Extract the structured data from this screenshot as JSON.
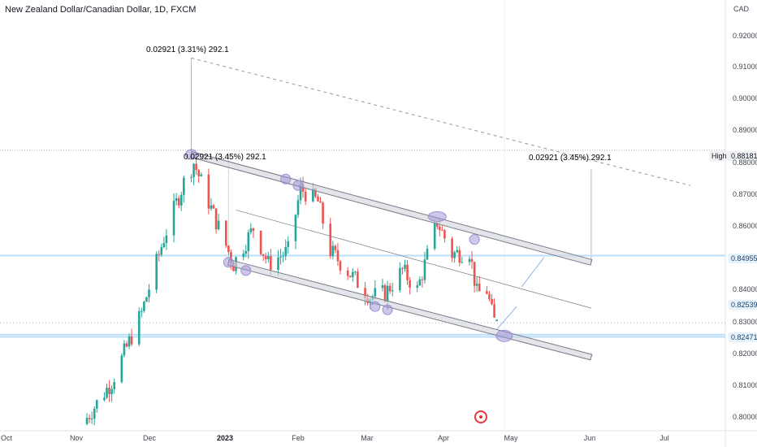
{
  "header": {
    "symbol_title": "New Zealand Dollar/Canadian Dollar, 1D, FXCM"
  },
  "axis": {
    "currency": "CAD",
    "high_label": "High"
  },
  "annotations": {
    "measure_top": "0.02921 (3.31%) 292.1",
    "measure_mid": "0.02921 (3.45%) 292.1",
    "measure_right": "0.02921 (3.45%) 292.1"
  },
  "colors": {
    "up": "#26a69a",
    "down": "#ef5350",
    "channel_fill": "#d1d4dc",
    "channel_stroke": "#787b86",
    "highlight": "#9c8fd6",
    "level_line": "#bbdefb",
    "annotation": "#f06a4a",
    "arrow": "#90b4e0"
  },
  "chart_data": {
    "type": "candlestick",
    "title": "New Zealand Dollar/Canadian Dollar, 1D, FXCM",
    "ylabel": "CAD",
    "ylim": [
      0.7955,
      0.9265
    ],
    "y_ticks": [
      "0.92000",
      "0.91000",
      "0.90000",
      "0.89000",
      "0.88000",
      "0.87000",
      "0.86000",
      "0.85000",
      "0.84000",
      "0.83000",
      "0.82000",
      "0.81000",
      "0.80000"
    ],
    "x_ticks": [
      "Oct",
      "Nov",
      "Dec",
      "2023",
      "Feb",
      "Mar",
      "Apr",
      "May",
      "Jun",
      "Jul"
    ],
    "x_tick_dates": [
      "2022-10-01",
      "2022-11-01",
      "2022-12-01",
      "2023-01-01",
      "2023-02-01",
      "2023-03-01",
      "2023-04-01",
      "2023-05-01",
      "2023-06-01",
      "2023-07-01"
    ],
    "date_range": [
      "2022-09-26",
      "2023-07-15"
    ],
    "price_levels": [
      {
        "label": "0.88181",
        "value": 0.88181,
        "note": "High"
      },
      {
        "label": "0.84955",
        "value": 0.84955
      },
      {
        "label": "0.82539",
        "value": 0.82539
      },
      {
        "label": "0.82471",
        "value": 0.82471
      }
    ],
    "series_keypoints": [
      {
        "date": "2022-10-31",
        "close": 0.8
      },
      {
        "date": "2022-11-10",
        "close": 0.811
      },
      {
        "date": "2022-11-22",
        "close": 0.832
      },
      {
        "date": "2022-12-01",
        "close": 0.855
      },
      {
        "date": "2022-12-09",
        "close": 0.872
      },
      {
        "date": "2022-12-13",
        "close": 0.878
      },
      {
        "date": "2022-12-21",
        "close": 0.862
      },
      {
        "date": "2022-12-29",
        "close": 0.847
      },
      {
        "date": "2023-01-06",
        "close": 0.858
      },
      {
        "date": "2023-01-12",
        "close": 0.847
      },
      {
        "date": "2023-01-20",
        "close": 0.851
      },
      {
        "date": "2023-01-25",
        "close": 0.87
      },
      {
        "date": "2023-02-01",
        "close": 0.866
      },
      {
        "date": "2023-02-06",
        "close": 0.851
      },
      {
        "date": "2023-02-14",
        "close": 0.844
      },
      {
        "date": "2023-02-22",
        "close": 0.837
      },
      {
        "date": "2023-02-28",
        "close": 0.838
      },
      {
        "date": "2023-03-07",
        "close": 0.845
      },
      {
        "date": "2023-03-13",
        "close": 0.839
      },
      {
        "date": "2023-03-21",
        "close": 0.86
      },
      {
        "date": "2023-03-27",
        "close": 0.85
      },
      {
        "date": "2023-04-03",
        "close": 0.851
      },
      {
        "date": "2023-04-06",
        "close": 0.838
      },
      {
        "date": "2023-04-10",
        "close": 0.839
      },
      {
        "date": "2023-04-12",
        "close": 0.832
      },
      {
        "date": "2023-04-14",
        "close": 0.827
      }
    ],
    "channel": {
      "upper_line": [
        {
          "date": "2022-12-12",
          "value": 0.8805
        },
        {
          "date": "2023-05-22",
          "value": 0.8475
        }
      ],
      "lower_line": [
        {
          "date": "2022-12-27",
          "value": 0.8475
        },
        {
          "date": "2023-05-22",
          "value": 0.8185
        }
      ],
      "median_line": [
        {
          "date": "2022-12-30",
          "value": 0.8635
        },
        {
          "date": "2023-05-22",
          "value": 0.8335
        }
      ]
    },
    "projection_line": [
      {
        "date": "2022-12-12",
        "value": 0.91
      },
      {
        "date": "2023-07-01",
        "value": 0.871
      }
    ]
  }
}
